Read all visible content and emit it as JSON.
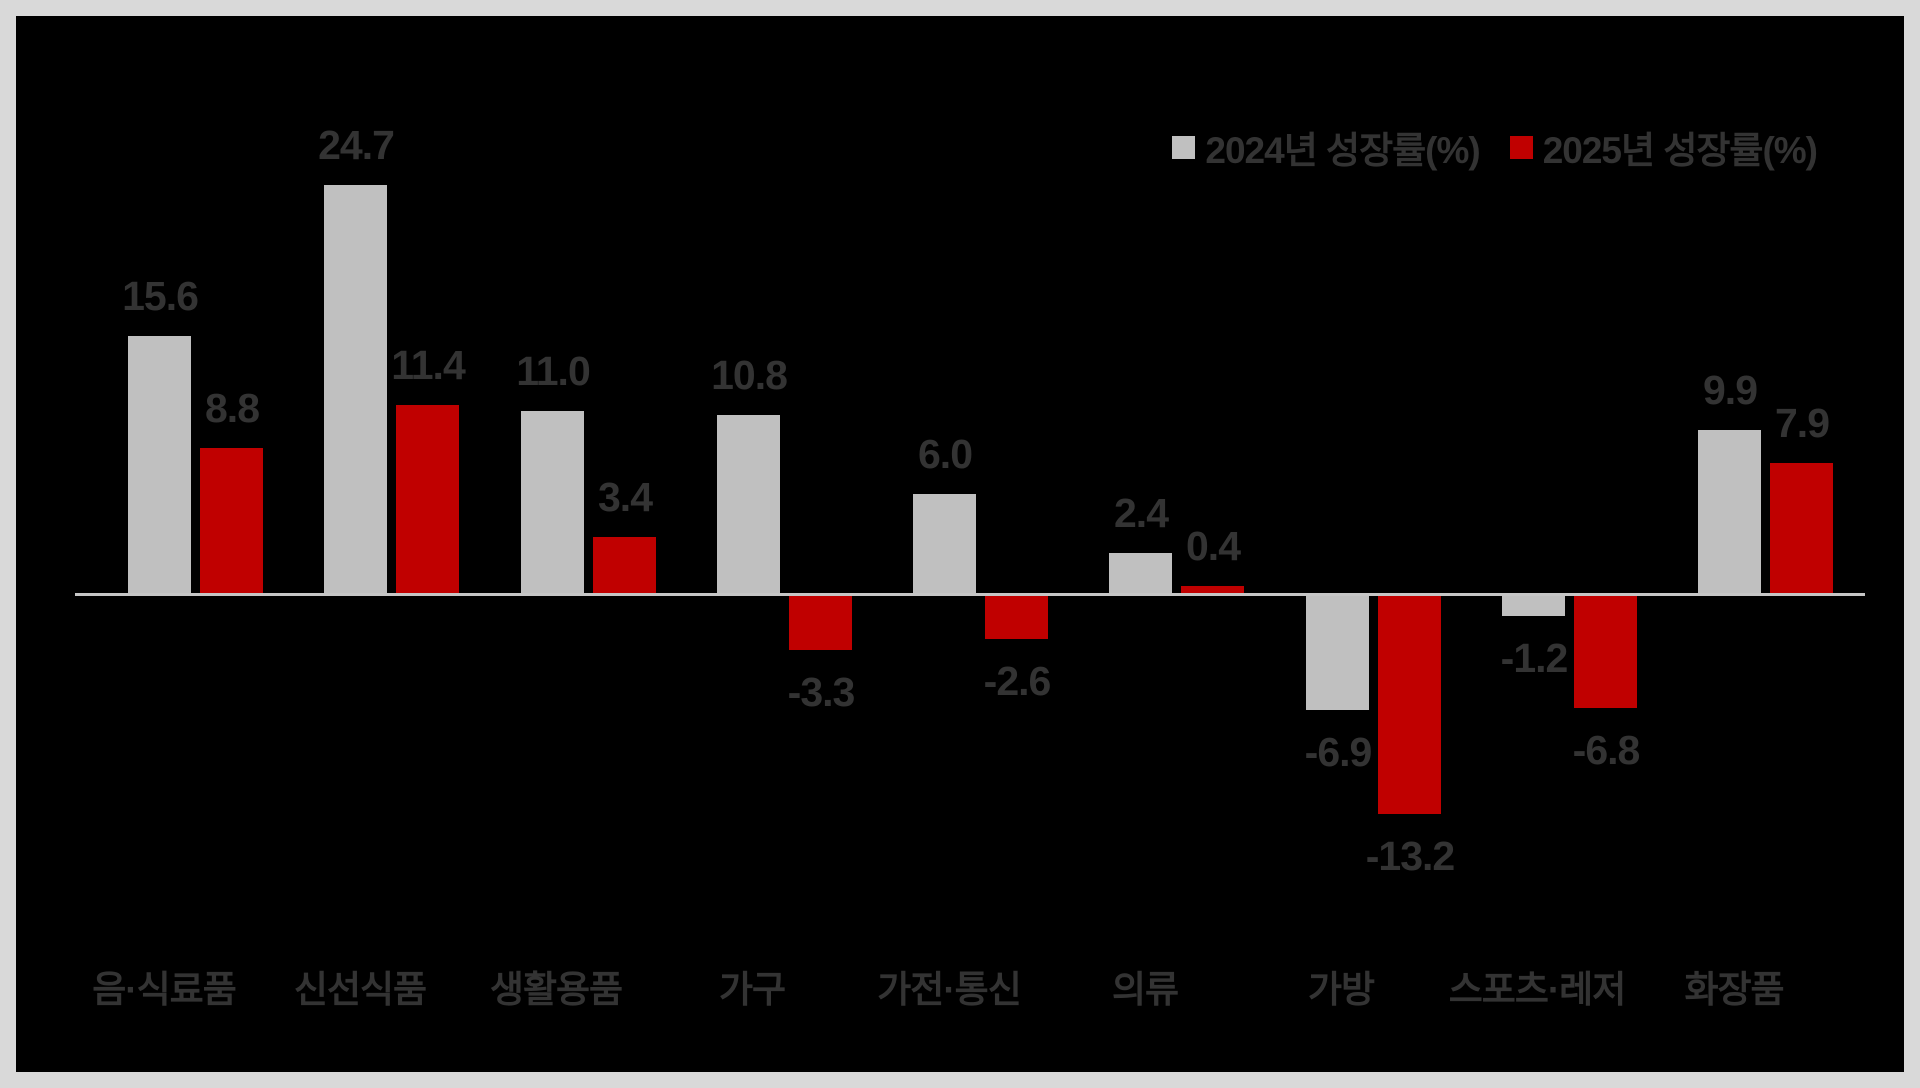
{
  "frame": {
    "outer_background": "#d9d9d9",
    "canvas_background": "#000000"
  },
  "legend": {
    "items": [
      {
        "label": "2024년 성장률(%)",
        "color": "#c0c0c0"
      },
      {
        "label": "2025년 성장률(%)",
        "color": "#c00000"
      }
    ]
  },
  "chart_data": {
    "type": "bar",
    "title": "",
    "categories": [
      "음·식료품",
      "신선식품",
      "생활용품",
      "가구",
      "가전·통신",
      "의류",
      "가방",
      "스포츠·레저",
      "화장품"
    ],
    "series": [
      {
        "name": "2024년 성장률(%)",
        "color": "#c0c0c0",
        "values": [
          15.6,
          24.7,
          11.0,
          10.8,
          6.0,
          2.4,
          -6.9,
          -1.2,
          9.9
        ]
      },
      {
        "name": "2025년 성장률(%)",
        "color": "#c00000",
        "values": [
          8.8,
          11.4,
          3.4,
          -3.3,
          -2.6,
          0.4,
          -13.2,
          -6.8,
          7.9
        ]
      }
    ],
    "xlabel": "",
    "ylabel": "",
    "ylim": [
      -15,
      26
    ],
    "grid": false,
    "legend_position": "top-right",
    "value_labels": true,
    "value_label_color": "#333333",
    "category_label_color": "#333333",
    "axis_line_color": "#c6c6c6"
  }
}
